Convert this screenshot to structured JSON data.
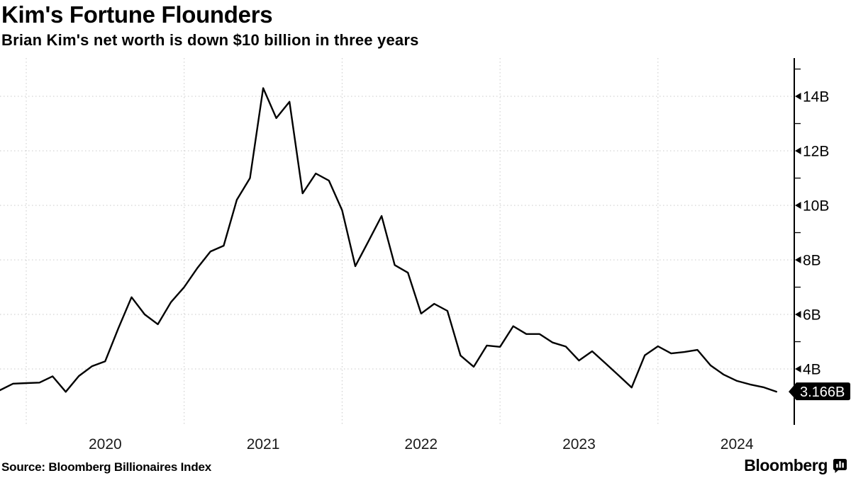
{
  "header": {
    "title": "Kim's Fortune Flounders",
    "subtitle": "Brian Kim's net worth is down $10 billion in three years"
  },
  "footer": {
    "source": "Source: Bloomberg Billionaires Index",
    "brand": "Bloomberg",
    "brand_icon": "bar-chart-bubble-icon"
  },
  "colors": {
    "background": "#ffffff",
    "line": "#000000",
    "grid": "#c9c9c9",
    "axis": "#000000",
    "x_label": "#1a1a1a",
    "y_label": "#000000",
    "tag_bg": "#000000",
    "tag_text": "#ffffff"
  },
  "chart_data": {
    "type": "line",
    "title": "Kim's Fortune Flounders",
    "subtitle": "Brian Kim's net worth is down $10 billion in three years",
    "unit": "USD billions (B = billion)",
    "grid": "dotted",
    "legend": "none",
    "y_axis_side": "right",
    "x": [
      "2019-11",
      "2019-12",
      "2020-01",
      "2020-02",
      "2020-03",
      "2020-04",
      "2020-05",
      "2020-06",
      "2020-07",
      "2020-08",
      "2020-09",
      "2020-10",
      "2020-11",
      "2020-12",
      "2021-01",
      "2021-02",
      "2021-03",
      "2021-04",
      "2021-05",
      "2021-06",
      "2021-07",
      "2021-08",
      "2021-09",
      "2021-10",
      "2021-11",
      "2021-12",
      "2022-01",
      "2022-02",
      "2022-03",
      "2022-04",
      "2022-05",
      "2022-06",
      "2022-07",
      "2022-08",
      "2022-09",
      "2022-10",
      "2022-11",
      "2022-12",
      "2023-01",
      "2023-02",
      "2023-03",
      "2023-04",
      "2023-05",
      "2023-06",
      "2023-07",
      "2023-08",
      "2023-09",
      "2023-10",
      "2023-11",
      "2023-12",
      "2024-01",
      "2024-02",
      "2024-03",
      "2024-04",
      "2024-05",
      "2024-06",
      "2024-07",
      "2024-08",
      "2024-09",
      "2024-10"
    ],
    "values": [
      3.22,
      3.46,
      3.48,
      3.5,
      3.73,
      3.16,
      3.74,
      4.1,
      4.28,
      5.49,
      6.63,
      6.0,
      5.64,
      6.45,
      7.0,
      7.7,
      8.31,
      8.52,
      10.2,
      11.0,
      14.3,
      13.2,
      13.8,
      10.44,
      11.17,
      10.91,
      9.82,
      7.77,
      8.68,
      9.61,
      7.81,
      7.53,
      6.03,
      6.39,
      6.13,
      4.49,
      4.08,
      4.86,
      4.81,
      5.57,
      5.28,
      5.28,
      4.97,
      4.82,
      4.31,
      4.65,
      4.21,
      3.77,
      3.32,
      4.5,
      4.83,
      4.57,
      4.62,
      4.7,
      4.13,
      3.79,
      3.56,
      3.43,
      3.33,
      3.166
    ],
    "x_tick_labels": [
      "2020",
      "2021",
      "2022",
      "2023",
      "2024"
    ],
    "x_gridline_years": [
      2020,
      2021,
      2022,
      2023,
      2024
    ],
    "y_major_ticks": [
      4,
      6,
      8,
      10,
      12,
      14
    ],
    "y_tick_labels": [
      "4B",
      "6B",
      "8B",
      "10B",
      "12B",
      "14B"
    ],
    "y_minor_ticks": [
      5,
      7,
      9,
      11,
      13,
      15
    ],
    "ylim": [
      1.95,
      15.4
    ],
    "last_value": 3.166,
    "last_value_label": "3.166B"
  }
}
